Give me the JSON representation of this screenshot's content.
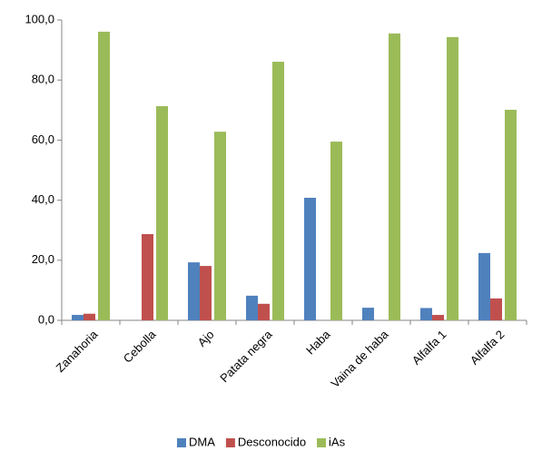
{
  "chart_data": {
    "type": "bar",
    "categories": [
      "Zanahoria",
      "Cebolla",
      "Ajo",
      "Patata negra",
      "Haba",
      "Vaina de haba",
      "Alfalfa 1",
      "Alfalfa 2"
    ],
    "series": [
      {
        "name": "DMA",
        "color": "#4f81bd",
        "values": [
          1.8,
          0,
          19.3,
          8.2,
          40.8,
          4.2,
          4.1,
          22.4
        ]
      },
      {
        "name": "Desconocido",
        "color": "#c0504d",
        "values": [
          2.2,
          28.7,
          18.1,
          5.5,
          0,
          0,
          1.8,
          7.3
        ]
      },
      {
        "name": "iAs",
        "color": "#9bbb59",
        "values": [
          96.1,
          71.3,
          62.8,
          86.1,
          59.5,
          95.5,
          94.3,
          70.1
        ]
      }
    ],
    "ylim": [
      0,
      100
    ],
    "yticks": [
      {
        "value": 0,
        "label": "0,0"
      },
      {
        "value": 20,
        "label": "20,0"
      },
      {
        "value": 40,
        "label": "40,0"
      },
      {
        "value": 60,
        "label": "60,0"
      },
      {
        "value": 80,
        "label": "80,0"
      },
      {
        "value": 100,
        "label": "100,0"
      }
    ],
    "grid": false,
    "legend": "bottom"
  }
}
